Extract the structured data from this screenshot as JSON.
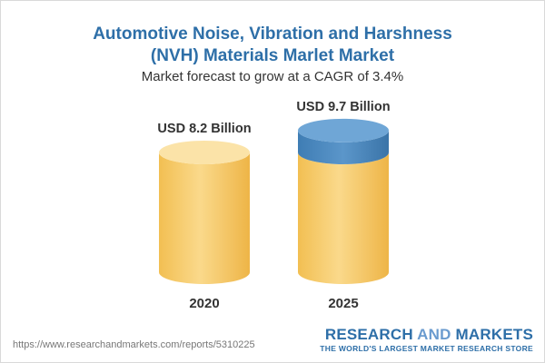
{
  "header": {
    "title_line1": "Automotive Noise, Vibration and Harshness",
    "title_line2": "(NVH) Materials Marlet Market",
    "subtitle": "Market forecast to grow at a CAGR of 3.4%"
  },
  "chart_data": {
    "type": "bar",
    "categories": [
      "2020",
      "2025"
    ],
    "values": [
      8.2,
      9.7
    ],
    "value_labels": [
      "USD 8.2 Billion",
      "USD 9.7 Billion"
    ],
    "unit": "USD Billion",
    "cagr": "3.4%",
    "colors": {
      "base_bar": "#f5c868",
      "base_bar_top": "#fbe3a8",
      "growth_segment": "#4a88be",
      "growth_top": "#6fa6d6"
    }
  },
  "footer": {
    "source_url": "https://www.researchandmarkets.com/reports/5310225",
    "brand_part1": "RESEARCH",
    "brand_part2": "AND",
    "brand_part3": "MARKETS",
    "tagline": "THE WORLD'S LARGEST MARKET RESEARCH STORE"
  }
}
